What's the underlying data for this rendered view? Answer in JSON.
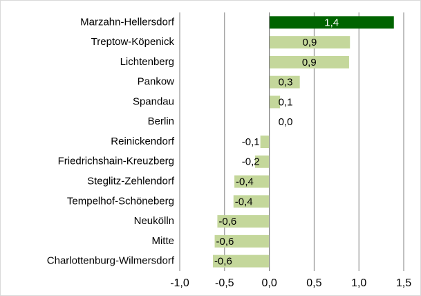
{
  "chart_data": {
    "type": "barh",
    "categories": [
      "Marzahn-Hellersdorf",
      "Treptow-Köpenick",
      "Lichtenberg",
      "Pankow",
      "Spandau",
      "Berlin",
      "Reinickendorf",
      "Friedrichshain-Kreuzberg",
      "Steglitz-Zehlendorf",
      "Tempelhof-Schöneberg",
      "Neukölln",
      "Mitte",
      "Charlottenburg-Wilmersdorf"
    ],
    "values": [
      1.39,
      0.9,
      0.89,
      0.34,
      0.12,
      0.0,
      -0.1,
      -0.16,
      -0.39,
      -0.4,
      -0.58,
      -0.61,
      -0.63
    ],
    "value_labels": [
      "1,4",
      "0,9",
      "0,9",
      "0,3",
      "0,1",
      "0,0",
      "-0,1",
      "-0,2",
      "-0,4",
      "-0,4",
      "-0,6",
      "-0,6",
      "-0,6"
    ],
    "colors": [
      "#006400",
      "#c4d79b",
      "#c4d79b",
      "#c4d79b",
      "#c4d79b",
      "#c4d79b",
      "#c4d79b",
      "#c4d79b",
      "#c4d79b",
      "#c4d79b",
      "#c4d79b",
      "#c4d79b",
      "#c4d79b"
    ],
    "xlim": [
      -1.0,
      1.5
    ],
    "xticks": [
      {
        "value": -1.0,
        "label": "-1,0"
      },
      {
        "value": -0.5,
        "label": "-0,5"
      },
      {
        "value": 0.0,
        "label": "0,0"
      },
      {
        "value": 0.5,
        "label": "0,5"
      },
      {
        "value": 1.0,
        "label": "1,0"
      },
      {
        "value": 1.5,
        "label": "1,5"
      }
    ],
    "grid": true
  }
}
